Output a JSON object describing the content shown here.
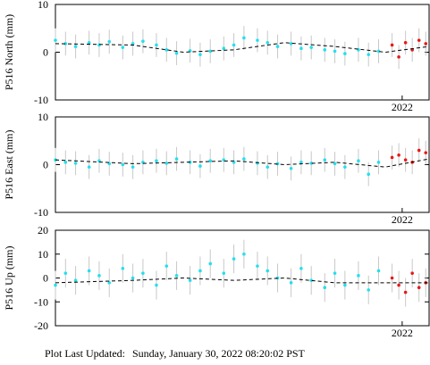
{
  "chart_data": [
    {
      "type": "scatter",
      "y_label": "P516 North (mm)",
      "xlim": [
        2020.97,
        2022.08
      ],
      "xticks": [
        2022
      ],
      "ylim": [
        -10,
        10
      ],
      "yticks": [
        -10,
        0,
        10
      ],
      "series": [
        {
          "color": "#22e0ee",
          "error": 2.5,
          "x": [
            2020.97,
            2021.0,
            2021.03,
            2021.07,
            2021.1,
            2021.13,
            2021.17,
            2021.2,
            2021.23,
            2021.27,
            2021.3,
            2021.33,
            2021.37,
            2021.4,
            2021.43,
            2021.47,
            2021.5,
            2021.53,
            2021.57,
            2021.6,
            2021.63,
            2021.67,
            2021.7,
            2021.73,
            2021.77,
            2021.8,
            2021.83,
            2021.87,
            2021.9,
            2021.93
          ],
          "values": [
            2.5,
            1.8,
            1.2,
            2.0,
            1.5,
            2.2,
            1.0,
            1.8,
            2.3,
            1.5,
            0.5,
            -0.2,
            0.3,
            -0.5,
            0.2,
            0.8,
            1.5,
            3.0,
            2.5,
            2.0,
            1.2,
            1.8,
            0.8,
            1.0,
            0.5,
            0.2,
            -0.3,
            0.5,
            -0.5,
            0.2
          ]
        },
        {
          "color": "#e81818",
          "error": 2.5,
          "x": [
            2021.97,
            2021.99,
            2022.01,
            2022.03,
            2022.05,
            2022.07
          ],
          "values": [
            1.5,
            -1,
            2,
            0.5,
            2.5,
            1.8
          ]
        },
        {
          "type": "line",
          "color": "#000000",
          "x": [
            2020.97,
            2021.2,
            2021.35,
            2021.5,
            2021.65,
            2021.8,
            2021.95,
            2022.08
          ],
          "values": [
            1.8,
            1.5,
            0,
            0.5,
            2,
            1.2,
            0,
            1.2
          ]
        }
      ]
    },
    {
      "type": "scatter",
      "y_label": "P516 East (mm)",
      "xlim": [
        2020.97,
        2022.08
      ],
      "xticks": [
        2022
      ],
      "ylim": [
        -10,
        10
      ],
      "yticks": [
        -10,
        0,
        10
      ],
      "series": [
        {
          "color": "#22e0ee",
          "error": 2.5,
          "x": [
            2020.97,
            2021.0,
            2021.03,
            2021.07,
            2021.1,
            2021.13,
            2021.17,
            2021.2,
            2021.23,
            2021.27,
            2021.3,
            2021.33,
            2021.37,
            2021.4,
            2021.43,
            2021.47,
            2021.5,
            2021.53,
            2021.57,
            2021.6,
            2021.63,
            2021.67,
            2021.7,
            2021.73,
            2021.77,
            2021.8,
            2021.83,
            2021.87,
            2021.9,
            2021.93
          ],
          "values": [
            1,
            0.5,
            0.3,
            -0.5,
            0.8,
            0.2,
            0,
            -0.5,
            0.5,
            0.8,
            0.3,
            1.2,
            0.5,
            -0.3,
            0.8,
            1,
            0.5,
            1.2,
            0.3,
            -0.5,
            0.2,
            -0.8,
            0.5,
            0.3,
            1,
            0.2,
            -0.5,
            0.8,
            -2,
            0.5
          ]
        },
        {
          "color": "#e81818",
          "error": 2.5,
          "x": [
            2021.97,
            2021.99,
            2022.01,
            2022.03,
            2022.05,
            2022.07
          ],
          "values": [
            1.5,
            2,
            1,
            0.5,
            3,
            2.5
          ]
        },
        {
          "type": "line",
          "color": "#000000",
          "x": [
            2020.97,
            2021.2,
            2021.35,
            2021.5,
            2021.65,
            2021.8,
            2021.95,
            2022.08
          ],
          "values": [
            1,
            0.2,
            0.5,
            0.8,
            0,
            0.5,
            -0.5,
            1.2
          ]
        }
      ]
    },
    {
      "type": "scatter",
      "y_label": "P516 Up (mm)",
      "xlim": [
        2020.97,
        2022.08
      ],
      "xticks": [
        2022
      ],
      "ylim": [
        -20,
        20
      ],
      "yticks": [
        -20,
        -10,
        0,
        10,
        20
      ],
      "series": [
        {
          "color": "#22e0ee",
          "error": 6,
          "x": [
            2020.97,
            2021.0,
            2021.03,
            2021.07,
            2021.1,
            2021.13,
            2021.17,
            2021.2,
            2021.23,
            2021.27,
            2021.3,
            2021.33,
            2021.37,
            2021.4,
            2021.43,
            2021.47,
            2021.5,
            2021.53,
            2021.57,
            2021.6,
            2021.63,
            2021.67,
            2021.7,
            2021.73,
            2021.77,
            2021.8,
            2021.83,
            2021.87,
            2021.9,
            2021.93
          ],
          "values": [
            -3,
            2,
            -1,
            3,
            1,
            -2,
            4,
            0,
            2,
            -3,
            5,
            1,
            -1,
            3,
            6,
            2,
            8,
            10,
            5,
            3,
            0,
            -2,
            4,
            -1,
            -4,
            2,
            -3,
            1,
            -5,
            3
          ]
        },
        {
          "color": "#e81818",
          "error": 6,
          "x": [
            2021.97,
            2021.99,
            2022.01,
            2022.03,
            2022.05,
            2022.07
          ],
          "values": [
            0,
            -3,
            -6,
            2,
            -4,
            -2
          ]
        },
        {
          "type": "line",
          "color": "#000000",
          "x": [
            2020.97,
            2021.2,
            2021.35,
            2021.5,
            2021.65,
            2021.8,
            2021.95,
            2022.08
          ],
          "values": [
            -2,
            -1,
            0,
            -1,
            0,
            -2,
            -2,
            -2
          ]
        }
      ]
    }
  ],
  "footer": {
    "label": "Plot Last Updated:",
    "value": "Sunday, January 30, 2022 08:20:02 PST"
  }
}
